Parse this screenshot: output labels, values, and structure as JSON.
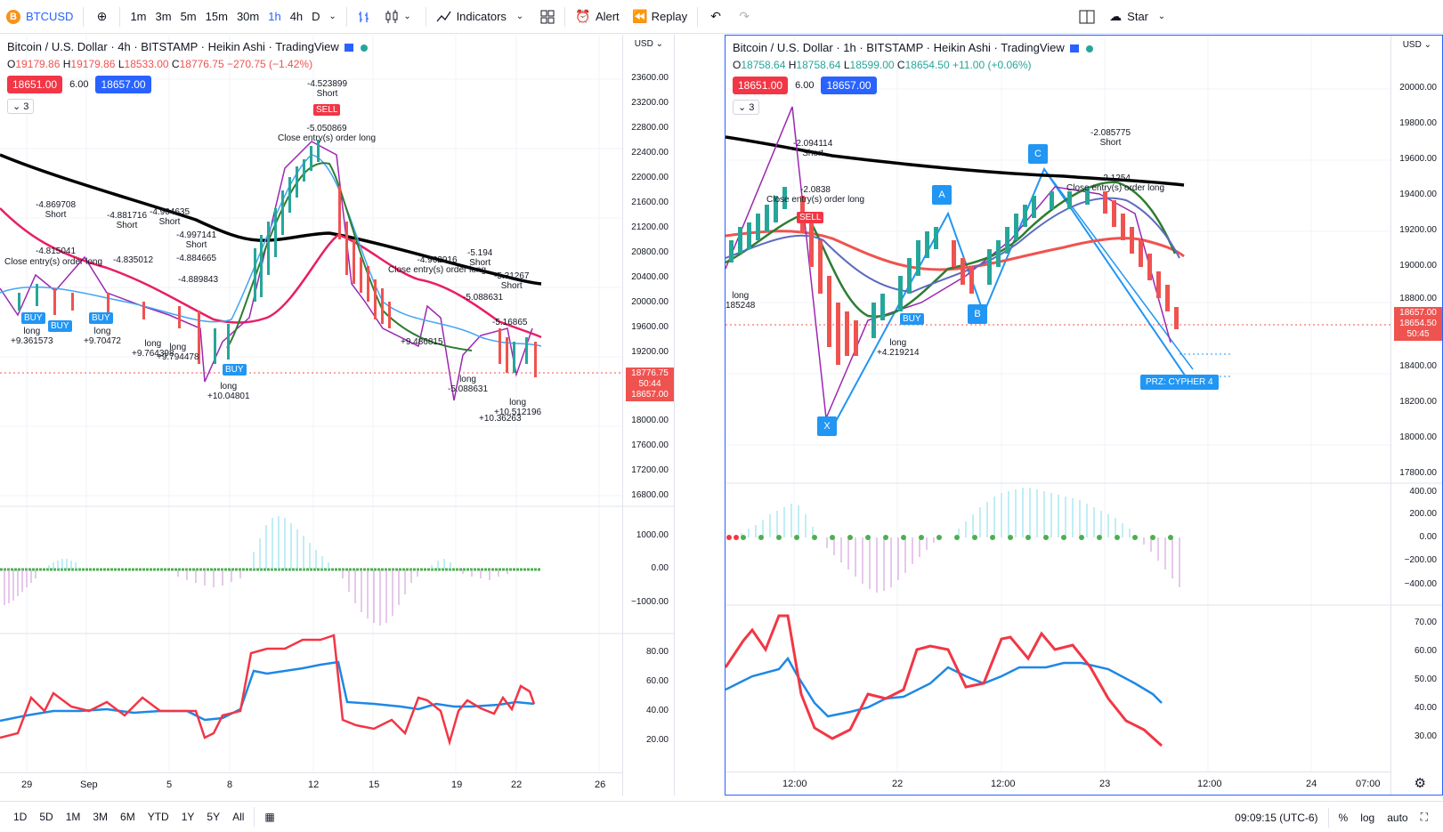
{
  "toolbar": {
    "symbol": "BTCUSD",
    "symbol_icon": "B",
    "timeframes": [
      "1m",
      "3m",
      "5m",
      "15m",
      "30m",
      "1h",
      "4h",
      "D"
    ],
    "active_timeframe": "1h",
    "indicators_label": "Indicators",
    "alert_label": "Alert",
    "replay_label": "Replay",
    "star_label": "Star"
  },
  "left": {
    "title": "Bitcoin / U.S. Dollar · 4h · BITSTAMP · Heikin Ashi · TradingView",
    "ohlc": {
      "o": "19179.86",
      "h": "19179.86",
      "l": "18533.00",
      "c": "18776.75",
      "chg": "−270.75 (−1.42%)"
    },
    "sell_badge": "18651.00",
    "spread": "6.00",
    "buy_badge": "18657.00",
    "collapse_count": "3",
    "currency": "USD",
    "price_axis": [
      "23600.00",
      "23200.00",
      "22800.00",
      "22400.00",
      "22000.00",
      "21600.00",
      "21200.00",
      "20800.00",
      "20400.00",
      "20000.00",
      "19600.00",
      "19200.00",
      "18000.00",
      "17600.00",
      "17200.00",
      "16800.00"
    ],
    "price_tag": {
      "price": "18776.75",
      "countdown": "50:44",
      "bid": "18657.00"
    },
    "macd_axis": [
      "1000.00",
      "0.00",
      "−1000.00"
    ],
    "rsi_axis": [
      "80.00",
      "60.00",
      "40.00",
      "20.00"
    ],
    "time_axis": [
      "29",
      "Sep",
      "5",
      "8",
      "12",
      "15",
      "19",
      "22",
      "26",
      "29"
    ],
    "annotations": [
      {
        "text": "-4.523899\nShort"
      },
      {
        "text": "-5.050869\nClose entry(s) order long"
      },
      {
        "text": "-4.869708\nShort"
      },
      {
        "text": "-4.881716\nShort"
      },
      {
        "text": "-4.904635\nShort"
      },
      {
        "text": "-4.997141\nShort"
      },
      {
        "text": "-4.815041"
      },
      {
        "text": "Close entry(s) order long"
      },
      {
        "text": "-4.835012"
      },
      {
        "text": "-4.884665"
      },
      {
        "text": "-4.889843"
      },
      {
        "text": "long\n+9.361573"
      },
      {
        "text": "long\n+9.70472"
      },
      {
        "text": "long\n+9.764398"
      },
      {
        "text": "long\n+9.794478"
      },
      {
        "text": "long\n+10.04801"
      },
      {
        "text": "-4.962916\nClose entry(s) order long"
      },
      {
        "text": "-5.194\nShort"
      },
      {
        "text": "-5.31267\nShort"
      },
      {
        "text": "-5.088631"
      },
      {
        "text": "+9.486815"
      },
      {
        "text": "long\n-5.088631"
      },
      {
        "text": "-5.16865"
      },
      {
        "text": "long\n+10.512196"
      },
      {
        "text": "+10.36263"
      }
    ],
    "sell_tag": "SELL",
    "buy_tag": "BUY"
  },
  "right": {
    "title": "Bitcoin / U.S. Dollar · 1h · BITSTAMP · Heikin Ashi · TradingView",
    "ohlc": {
      "o": "18758.64",
      "h": "18758.64",
      "l": "18599.00",
      "c": "18654.50",
      "chg": "+11.00 (+0.06%)"
    },
    "sell_badge": "18651.00",
    "spread": "6.00",
    "buy_badge": "18657.00",
    "collapse_count": "3",
    "currency": "USD",
    "price_axis": [
      "20000.00",
      "19800.00",
      "19600.00",
      "19400.00",
      "19200.00",
      "19000.00",
      "18800.00",
      "18400.00",
      "18200.00",
      "18000.00",
      "17800.00"
    ],
    "price_tags": {
      "bid": "18657.00",
      "last": "18654.50",
      "countdown": "50:45"
    },
    "macd_axis": [
      "400.00",
      "200.00",
      "0.00",
      "−200.00",
      "−400.00"
    ],
    "rsi_axis": [
      "70.00",
      "60.00",
      "50.00",
      "40.00",
      "30.00"
    ],
    "time_axis": [
      "12:00",
      "22",
      "12:00",
      "23",
      "12:00",
      "24",
      "07:00"
    ],
    "pattern_points": [
      "X",
      "A",
      "B",
      "C"
    ],
    "prz_label": "PRZ: CYPHER 4",
    "annotations": [
      {
        "text": "-2.094114\nShort"
      },
      {
        "text": "-2.0838\nClose entry(s) order long"
      },
      {
        "text": "-2.085775\nShort"
      },
      {
        "text": "-2.1254\nClose entry(s) order long"
      },
      {
        "text": "long\n185248"
      },
      {
        "text": "long\n+4.219214"
      }
    ],
    "buy_tag": "BUY",
    "sell_tag": "SELL"
  },
  "bottombar": {
    "ranges": [
      "1D",
      "5D",
      "1M",
      "3M",
      "6M",
      "YTD",
      "1Y",
      "5Y",
      "All"
    ],
    "clock": "09:09:15 (UTC-6)",
    "percent": "%",
    "log": "log",
    "auto": "auto"
  },
  "colors": {
    "accent": "#2962ff",
    "up": "#26a69a",
    "down": "#ef5350",
    "sell": "#f23645",
    "buy": "#2196f3",
    "ema_black": "#000000",
    "ema_red": "#e91e63"
  }
}
